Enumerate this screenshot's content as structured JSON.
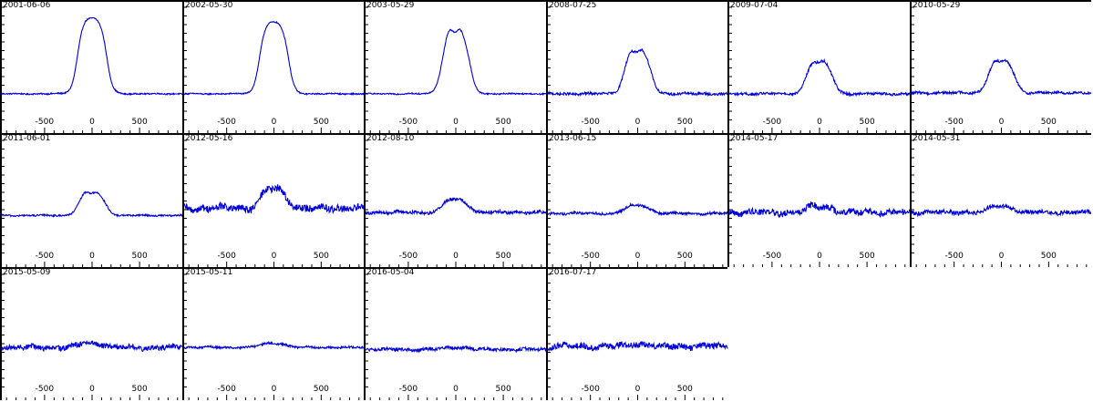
{
  "chart_data": {
    "type": "line",
    "layout_cols": 6,
    "series_color": "#0000dd",
    "xlim": [
      -950,
      950
    ],
    "ylim": [
      0,
      1
    ],
    "x_ticks": [
      -500,
      0,
      500
    ],
    "x_tick_labels": [
      "-500",
      "0",
      "500"
    ],
    "grid": false,
    "panels": [
      {
        "date": "2001-06-06",
        "baseline": 0.22,
        "peak": 0.96,
        "shape": "flat",
        "noise": 0.006
      },
      {
        "date": "2002-05-30",
        "baseline": 0.22,
        "peak": 0.92,
        "shape": "flat",
        "noise": 0.006
      },
      {
        "date": "2003-05-29",
        "baseline": 0.22,
        "peak": 0.86,
        "shape": "horn",
        "noise": 0.006
      },
      {
        "date": "2008-07-25",
        "baseline": 0.22,
        "peak": 0.65,
        "shape": "horn",
        "noise": 0.012
      },
      {
        "date": "2009-07-04",
        "baseline": 0.22,
        "peak": 0.54,
        "shape": "horn",
        "noise": 0.012
      },
      {
        "date": "2010-05-29",
        "baseline": 0.23,
        "peak": 0.55,
        "shape": "horn",
        "noise": 0.012
      },
      {
        "date": "2011-06-01",
        "baseline": 0.33,
        "peak": 0.56,
        "shape": "horn",
        "noise": 0.008
      },
      {
        "date": "2012-05-16",
        "baseline": 0.4,
        "peak": 0.59,
        "shape": "horn",
        "noise": 0.035
      },
      {
        "date": "2012-08-10",
        "baseline": 0.36,
        "peak": 0.49,
        "shape": "horn",
        "noise": 0.015
      },
      {
        "date": "2013-06-15",
        "baseline": 0.35,
        "peak": 0.43,
        "shape": "horn",
        "noise": 0.012
      },
      {
        "date": "2014-05-17",
        "baseline": 0.36,
        "peak": 0.42,
        "shape": "horn",
        "noise": 0.03
      },
      {
        "date": "2014-05-31",
        "baseline": 0.36,
        "peak": 0.42,
        "shape": "horn",
        "noise": 0.02
      },
      {
        "date": "2015-05-09",
        "baseline": 0.35,
        "peak": 0.39,
        "shape": "horn",
        "noise": 0.025
      },
      {
        "date": "2015-05-11",
        "baseline": 0.35,
        "peak": 0.39,
        "shape": "horn",
        "noise": 0.01
      },
      {
        "date": "2016-05-04",
        "baseline": 0.33,
        "peak": 0.35,
        "shape": "horn",
        "noise": 0.015
      },
      {
        "date": "2016-07-17",
        "baseline": 0.36,
        "peak": 0.38,
        "shape": "horn",
        "noise": 0.03
      }
    ]
  }
}
